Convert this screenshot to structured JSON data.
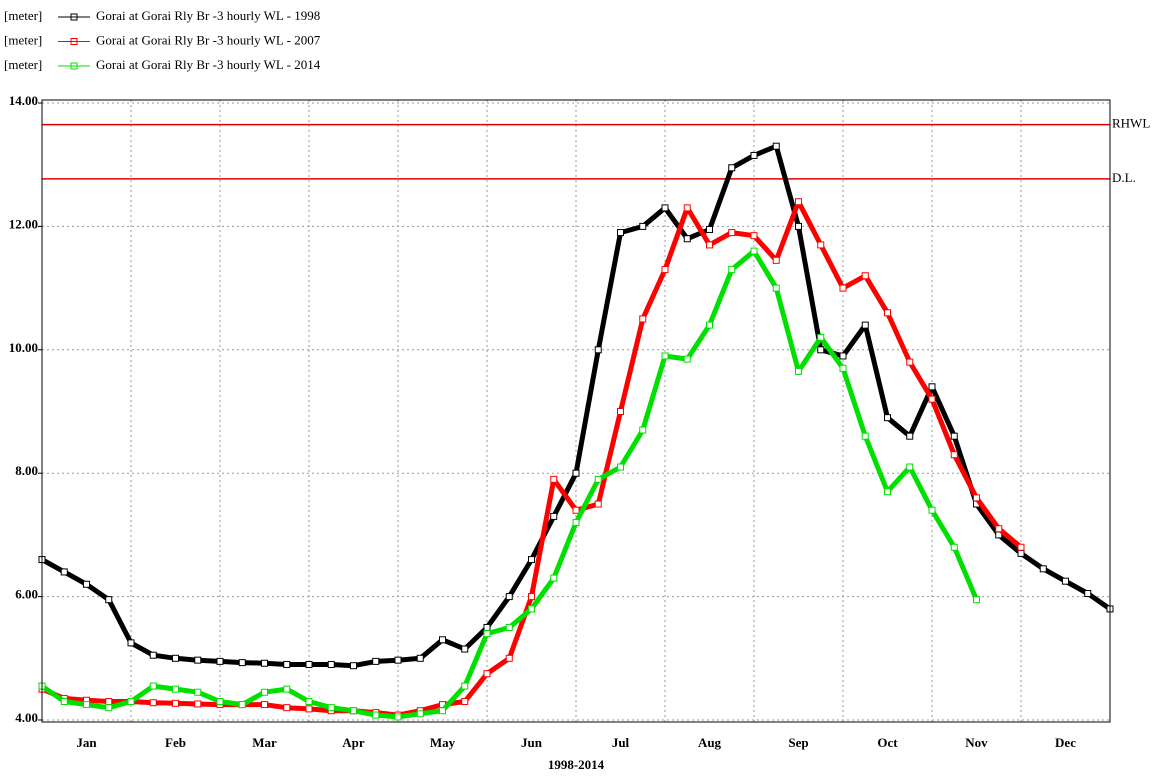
{
  "chart_data": {
    "type": "line",
    "legend_unit": "[meter]",
    "x_label": "1998-2014",
    "categories": [
      "Jan",
      "Feb",
      "Mar",
      "Apr",
      "May",
      "Jun",
      "Jul",
      "Aug",
      "Sep",
      "Oct",
      "Nov",
      "Dec"
    ],
    "x": [
      0,
      0.25,
      0.5,
      0.75,
      1,
      1.25,
      1.5,
      1.75,
      2,
      2.25,
      2.5,
      2.75,
      3,
      3.25,
      3.5,
      3.75,
      4,
      4.25,
      4.5,
      4.75,
      5,
      5.25,
      5.5,
      5.75,
      6,
      6.25,
      6.5,
      6.75,
      7,
      7.25,
      7.5,
      7.75,
      8,
      8.25,
      8.5,
      8.75,
      9,
      9.25,
      9.5,
      9.75,
      10,
      10.25,
      10.5,
      10.75,
      11,
      11.25,
      11.5,
      11.75,
      12
    ],
    "xlim": [
      0,
      12
    ],
    "ylim": [
      4,
      14
    ],
    "yticks": [
      {
        "value": 4,
        "label": "4.00"
      },
      {
        "value": 6,
        "label": "6.00"
      },
      {
        "value": 8,
        "label": "8.00"
      },
      {
        "value": 10,
        "label": "10.00"
      },
      {
        "value": 12,
        "label": "12.00"
      },
      {
        "value": 14,
        "label": "14.00"
      }
    ],
    "grid": true,
    "reference_lines": [
      {
        "label": "RHWL",
        "value": 13.65,
        "color": "#e00000"
      },
      {
        "label": "D.L.",
        "value": 12.77,
        "color": "#e00000"
      }
    ],
    "series": [
      {
        "name": "Gorai at Gorai Rly Br -3 hourly WL - 1998",
        "color": "#000000",
        "values": [
          6.6,
          6.4,
          6.2,
          5.95,
          5.25,
          5.05,
          5.0,
          4.97,
          4.95,
          4.93,
          4.92,
          4.9,
          4.9,
          4.9,
          4.88,
          4.95,
          4.97,
          5.0,
          5.3,
          5.15,
          5.5,
          6.0,
          6.6,
          7.3,
          8.0,
          10.0,
          11.9,
          12.0,
          12.3,
          11.8,
          11.95,
          12.95,
          13.15,
          13.3,
          12.0,
          10.0,
          9.9,
          10.4,
          8.9,
          8.6,
          9.4,
          8.6,
          7.5,
          7.0,
          6.7,
          6.45,
          6.25,
          6.05,
          5.8
        ]
      },
      {
        "name": "Gorai at Gorai Rly Br -3 hourly WL - 2007",
        "color": "#ff0000",
        "values": [
          4.5,
          4.35,
          4.32,
          4.3,
          4.3,
          4.28,
          4.27,
          4.26,
          4.25,
          4.25,
          4.25,
          4.2,
          4.18,
          4.15,
          4.15,
          4.12,
          4.08,
          4.15,
          4.25,
          4.3,
          4.75,
          5.0,
          6.0,
          7.9,
          7.4,
          7.5,
          9.0,
          10.5,
          11.3,
          12.3,
          11.7,
          11.9,
          11.85,
          11.45,
          12.4,
          11.7,
          11.0,
          11.2,
          10.6,
          9.8,
          9.2,
          8.3,
          7.6,
          7.1,
          6.8,
          null,
          null,
          null,
          null
        ]
      },
      {
        "name": "Gorai at Gorai Rly Br -3 hourly WL - 2014",
        "color": "#00e000",
        "values": [
          4.55,
          4.3,
          4.25,
          4.2,
          4.3,
          4.55,
          4.5,
          4.45,
          4.3,
          4.25,
          4.45,
          4.5,
          4.3,
          4.2,
          4.15,
          4.08,
          4.05,
          4.1,
          4.15,
          4.55,
          5.4,
          5.5,
          5.8,
          6.3,
          7.2,
          7.9,
          8.1,
          8.7,
          9.9,
          9.85,
          10.4,
          11.3,
          11.6,
          11.0,
          9.65,
          10.2,
          9.7,
          8.6,
          7.7,
          8.1,
          7.4,
          6.8,
          5.95,
          null,
          null,
          null,
          null,
          null,
          null
        ]
      }
    ]
  }
}
